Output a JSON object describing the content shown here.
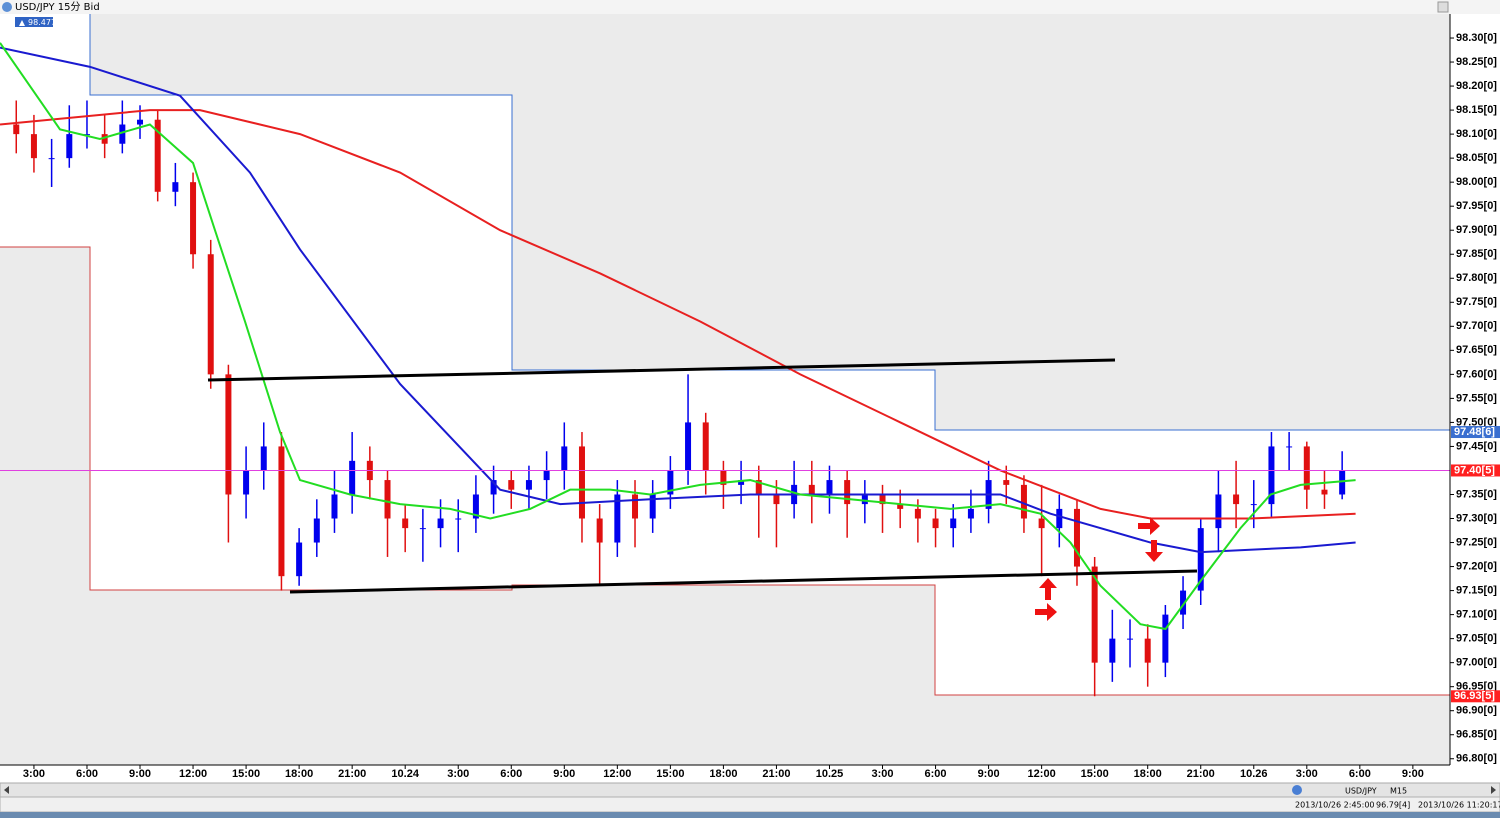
{
  "chart_data": {
    "type": "candlestick",
    "title": "USD/JPY 15分 Bid",
    "badge": "98.477",
    "up_color": "#0000ee",
    "down_color": "#e01010",
    "x": [
      2,
      3,
      4,
      5,
      6,
      7,
      8,
      9,
      10,
      11,
      12,
      13,
      14,
      15,
      16,
      17,
      18,
      19,
      20,
      21,
      22,
      23,
      24,
      25,
      26,
      27,
      28,
      29,
      30,
      31,
      32,
      33,
      34,
      35,
      36,
      37,
      38,
      39,
      40,
      41,
      42,
      43,
      44,
      45,
      46,
      47,
      48,
      49,
      50,
      51,
      52,
      53,
      54,
      55,
      56,
      57,
      58,
      59,
      60,
      61,
      62,
      63,
      64,
      65,
      66,
      67,
      68,
      69,
      70,
      71,
      72,
      73,
      74,
      75,
      76,
      77
    ],
    "open": [
      98.12,
      98.1,
      98.05,
      98.05,
      98.1,
      98.1,
      98.08,
      98.12,
      98.13,
      97.98,
      98.0,
      97.85,
      97.6,
      97.35,
      97.4,
      97.45,
      97.18,
      97.25,
      97.3,
      97.35,
      97.42,
      97.38,
      97.3,
      97.28,
      97.28,
      97.3,
      97.3,
      97.35,
      97.38,
      97.36,
      97.38,
      97.4,
      97.45,
      97.3,
      97.25,
      97.35,
      97.3,
      97.35,
      97.4,
      97.5,
      97.4,
      97.37,
      97.38,
      97.35,
      97.33,
      97.37,
      97.35,
      97.38,
      97.33,
      97.35,
      97.33,
      97.32,
      97.3,
      97.28,
      97.3,
      97.32,
      97.38,
      97.37,
      97.3,
      97.28,
      97.32,
      97.2,
      97.0,
      97.05,
      97.05,
      97.0,
      97.1,
      97.15,
      97.28,
      97.35,
      97.33,
      97.33,
      97.45,
      97.45,
      97.36,
      97.35
    ],
    "high": [
      98.17,
      98.14,
      98.09,
      98.16,
      98.17,
      98.14,
      98.17,
      98.16,
      98.15,
      98.04,
      98.02,
      97.88,
      97.62,
      97.45,
      97.5,
      97.48,
      97.28,
      97.34,
      97.4,
      97.48,
      97.45,
      97.4,
      97.33,
      97.32,
      97.34,
      97.34,
      97.39,
      97.41,
      97.4,
      97.41,
      97.44,
      97.5,
      97.48,
      97.33,
      97.38,
      97.38,
      97.38,
      97.43,
      97.6,
      97.52,
      97.42,
      97.42,
      97.41,
      97.38,
      97.42,
      97.42,
      97.41,
      97.4,
      97.38,
      97.37,
      97.36,
      97.34,
      97.32,
      97.33,
      97.36,
      97.42,
      97.41,
      97.39,
      97.37,
      97.35,
      97.34,
      97.22,
      97.11,
      97.09,
      97.08,
      97.12,
      97.18,
      97.3,
      97.4,
      97.42,
      97.38,
      97.48,
      97.48,
      97.46,
      97.4,
      97.44
    ],
    "low": [
      98.06,
      98.02,
      97.99,
      98.03,
      98.07,
      98.05,
      98.06,
      98.09,
      97.96,
      97.95,
      97.82,
      97.57,
      97.25,
      97.3,
      97.36,
      97.15,
      97.16,
      97.22,
      97.27,
      97.31,
      97.34,
      97.22,
      97.23,
      97.21,
      97.24,
      97.23,
      97.27,
      97.31,
      97.32,
      97.32,
      97.34,
      97.36,
      97.25,
      97.16,
      97.22,
      97.24,
      97.27,
      97.32,
      97.37,
      97.35,
      97.32,
      97.33,
      97.26,
      97.24,
      97.3,
      97.29,
      97.31,
      97.26,
      97.29,
      97.27,
      97.28,
      97.25,
      97.24,
      97.24,
      97.27,
      97.29,
      97.33,
      97.27,
      97.18,
      97.24,
      97.16,
      96.93,
      96.96,
      96.99,
      96.95,
      96.97,
      97.07,
      97.12,
      97.23,
      97.28,
      97.28,
      97.3,
      97.4,
      97.32,
      97.32,
      97.34
    ],
    "close": [
      98.1,
      98.05,
      98.05,
      98.1,
      98.1,
      98.08,
      98.12,
      98.13,
      97.98,
      98.0,
      97.85,
      97.6,
      97.35,
      97.4,
      97.45,
      97.18,
      97.25,
      97.3,
      97.35,
      97.42,
      97.38,
      97.3,
      97.28,
      97.28,
      97.3,
      97.3,
      97.35,
      97.38,
      97.36,
      97.38,
      97.4,
      97.45,
      97.3,
      97.25,
      97.35,
      97.3,
      97.35,
      97.4,
      97.5,
      97.4,
      97.37,
      97.38,
      97.35,
      97.33,
      97.37,
      97.35,
      97.38,
      97.33,
      97.35,
      97.33,
      97.32,
      97.3,
      97.28,
      97.3,
      97.32,
      97.38,
      97.37,
      97.3,
      97.28,
      97.32,
      97.2,
      97.0,
      97.05,
      97.05,
      97.0,
      97.1,
      97.15,
      97.28,
      97.35,
      97.33,
      97.33,
      97.45,
      97.45,
      97.36,
      97.35,
      97.4
    ],
    "lines": [
      {
        "color": "#e82020",
        "x": [
          1.08,
          9.56,
          12.39,
          18.05,
          23.71,
          29.37,
          35.03,
          40.69,
          46.35,
          52.01,
          57.67,
          60.5,
          63.33,
          66.16,
          71.82,
          77.76
        ],
        "values": [
          98.12,
          98.15,
          98.15,
          98.1,
          98.02,
          97.9,
          97.81,
          97.71,
          97.6,
          97.5,
          97.4,
          97.36,
          97.32,
          97.3,
          97.3,
          97.31
        ]
      },
      {
        "color": "#1a1ad0",
        "x": [
          1.08,
          6.17,
          11.26,
          15.22,
          18.05,
          23.71,
          29.37,
          32.77,
          37.86,
          43.52,
          49.18,
          54.84,
          57.67,
          60.5,
          66.16,
          68.99,
          74.65,
          77.76
        ],
        "values": [
          98.28,
          98.24,
          98.18,
          98.02,
          97.86,
          97.58,
          97.36,
          97.33,
          97.34,
          97.35,
          97.35,
          97.35,
          97.35,
          97.31,
          97.25,
          97.23,
          97.24,
          97.25
        ]
      },
      {
        "color": "#22dd22",
        "x": [
          1.08,
          4.47,
          6.73,
          9.56,
          12.0,
          13.24,
          14.94,
          16.92,
          18.05,
          20.88,
          23.71,
          26.54,
          28.81,
          31.07,
          33.33,
          35.6,
          37.86,
          40.69,
          43.52,
          46.35,
          49.18,
          52.01,
          54.84,
          57.67,
          59.93,
          61.63,
          63.33,
          65.59,
          67.01,
          68.99,
          71.25,
          72.95,
          74.65,
          77.76
        ],
        "values": [
          98.29,
          98.11,
          98.09,
          98.12,
          98.04,
          97.9,
          97.71,
          97.48,
          97.38,
          97.35,
          97.33,
          97.32,
          97.3,
          97.32,
          97.36,
          97.36,
          97.35,
          97.37,
          97.38,
          97.35,
          97.34,
          97.33,
          97.32,
          97.33,
          97.31,
          97.25,
          97.16,
          97.08,
          97.07,
          97.17,
          97.28,
          97.35,
          97.37,
          97.38
        ]
      }
    ],
    "xlim": [
      1.08,
      83.1
    ],
    "ylim": [
      96.787,
      98.35
    ],
    "xticks": [
      {
        "value": 3,
        "label": "3:00"
      },
      {
        "value": 6,
        "label": "6:00"
      },
      {
        "value": 9,
        "label": "9:00"
      },
      {
        "value": 12,
        "label": "12:00"
      },
      {
        "value": 15,
        "label": "15:00"
      },
      {
        "value": 18,
        "label": "18:00"
      },
      {
        "value": 21,
        "label": "21:00"
      },
      {
        "value": 24,
        "label": "10.24"
      },
      {
        "value": 27,
        "label": "3:00"
      },
      {
        "value": 30,
        "label": "6:00"
      },
      {
        "value": 33,
        "label": "9:00"
      },
      {
        "value": 36,
        "label": "12:00"
      },
      {
        "value": 39,
        "label": "15:00"
      },
      {
        "value": 42,
        "label": "18:00"
      },
      {
        "value": 45,
        "label": "21:00"
      },
      {
        "value": 48,
        "label": "10.25"
      },
      {
        "value": 51,
        "label": "3:00"
      },
      {
        "value": 54,
        "label": "6:00"
      },
      {
        "value": 57,
        "label": "9:00"
      },
      {
        "value": 60,
        "label": "12:00"
      },
      {
        "value": 63,
        "label": "15:00"
      },
      {
        "value": 66,
        "label": "18:00"
      },
      {
        "value": 69,
        "label": "21:00"
      },
      {
        "value": 72,
        "label": "10.26"
      },
      {
        "value": 75,
        "label": "3:00"
      },
      {
        "value": 78,
        "label": "6:00"
      },
      {
        "value": 81,
        "label": "9:00"
      }
    ],
    "yticks": [
      {
        "value": 98.3,
        "label": "98.30[0]"
      },
      {
        "value": 98.25,
        "label": "98.25[0]"
      },
      {
        "value": 98.2,
        "label": "98.20[0]"
      },
      {
        "value": 98.15,
        "label": "98.15[0]"
      },
      {
        "value": 98.1,
        "label": "98.10[0]"
      },
      {
        "value": 98.05,
        "label": "98.05[0]"
      },
      {
        "value": 98.0,
        "label": "98.00[0]"
      },
      {
        "value": 97.95,
        "label": "97.95[0]"
      },
      {
        "value": 97.9,
        "label": "97.90[0]"
      },
      {
        "value": 97.85,
        "label": "97.85[0]"
      },
      {
        "value": 97.8,
        "label": "97.80[0]"
      },
      {
        "value": 97.75,
        "label": "97.75[0]"
      },
      {
        "value": 97.7,
        "label": "97.70[0]"
      },
      {
        "value": 97.65,
        "label": "97.65[0]"
      },
      {
        "value": 97.6,
        "label": "97.60[0]"
      },
      {
        "value": 97.55,
        "label": "97.55[0]"
      },
      {
        "value": 97.5,
        "label": "97.50[0]"
      },
      {
        "value": 97.45,
        "label": "97.45[0]"
      },
      {
        "value": 97.35,
        "label": "97.35[0]"
      },
      {
        "value": 97.3,
        "label": "97.30[0]"
      },
      {
        "value": 97.25,
        "label": "97.25[0]"
      },
      {
        "value": 97.2,
        "label": "97.20[0]"
      },
      {
        "value": 97.15,
        "label": "97.15[0]"
      },
      {
        "value": 97.1,
        "label": "97.10[0]"
      },
      {
        "value": 97.05,
        "label": "97.05[0]"
      },
      {
        "value": 97.0,
        "label": "97.00[0]"
      },
      {
        "value": 96.95,
        "label": "96.95[0]"
      },
      {
        "value": 96.9,
        "label": "96.90[0]"
      },
      {
        "value": 96.85,
        "label": "96.85[0]"
      },
      {
        "value": 96.8,
        "label": "96.80[0]"
      }
    ],
    "price_markers": [
      {
        "value": 97.48,
        "label": "97.48[6]",
        "color": "#3a6fd0"
      },
      {
        "value": 97.4,
        "label": "97.40[5]",
        "color": "#ff2020",
        "line_color": "#e040e0"
      },
      {
        "value": 96.93,
        "label": "96.93[5]",
        "color": "#ff2020"
      }
    ]
  },
  "status_bar": {
    "symbol": "USD/JPY",
    "timeframe": "M15",
    "cursor_time": "2013/10/26 2:45:00",
    "cursor_price": "96.79[4]",
    "server_time": "2013/10/26 11:20:17"
  }
}
